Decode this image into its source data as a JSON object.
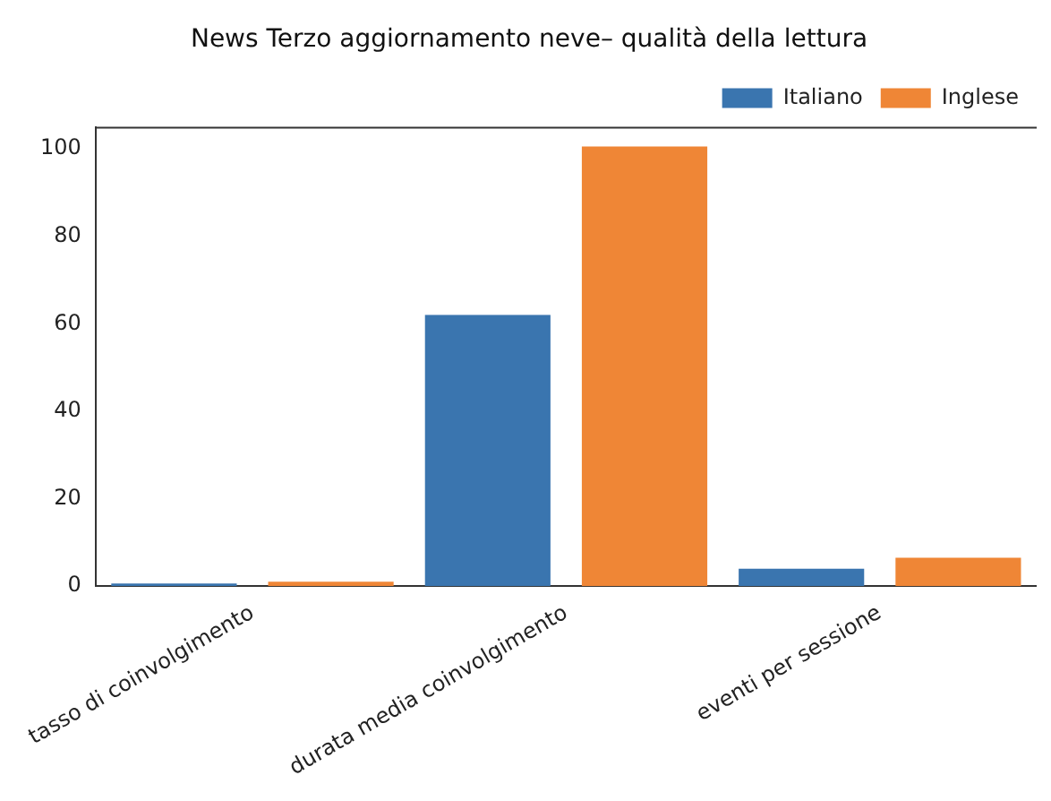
{
  "chart_data": {
    "type": "bar",
    "title": "News Terzo aggiornamento neve– qualità della lettura",
    "categories": [
      "tasso di coinvolgimento",
      "durata media coinvolgimento",
      "eventi per sessione"
    ],
    "series": [
      {
        "name": "Italiano",
        "color": "#3a75af",
        "values": [
          0.6,
          62,
          4
        ]
      },
      {
        "name": "Inglese",
        "color": "#ef8636",
        "values": [
          1.0,
          100.5,
          6.5
        ]
      }
    ],
    "ylim": [
      0,
      105
    ],
    "yticks": [
      0,
      20,
      40,
      60,
      80,
      100
    ],
    "grid": false,
    "legend": "top right"
  }
}
